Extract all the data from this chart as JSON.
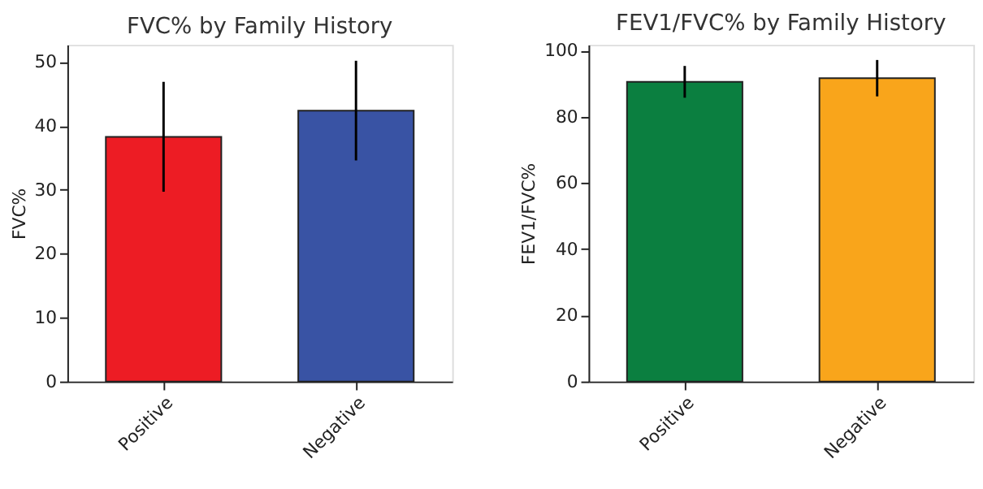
{
  "chart_data": [
    {
      "type": "bar",
      "title": "FVC% by Family History",
      "ylabel": "FVC%",
      "categories": [
        "Positive",
        "Negative"
      ],
      "values": [
        38.3,
        42.4
      ],
      "colors": [
        "#ed1c24",
        "#3953a4"
      ],
      "errors": [
        8.6,
        7.8
      ],
      "ylim": [
        0,
        52.7
      ],
      "yticks": [
        0,
        10,
        20,
        30,
        40,
        50
      ],
      "grid": false
    },
    {
      "type": "bar",
      "title": "FEV1/FVC% by Family History",
      "ylabel": "FEV1/FVC%",
      "categories": [
        "Positive",
        "Negative"
      ],
      "values": [
        90.6,
        91.7
      ],
      "colors": [
        "#0b7f40",
        "#f9a51b"
      ],
      "errors": [
        4.8,
        5.5
      ],
      "ylim": [
        0,
        101.8
      ],
      "yticks": [
        0,
        20,
        40,
        60,
        80,
        100
      ],
      "grid": false
    }
  ]
}
